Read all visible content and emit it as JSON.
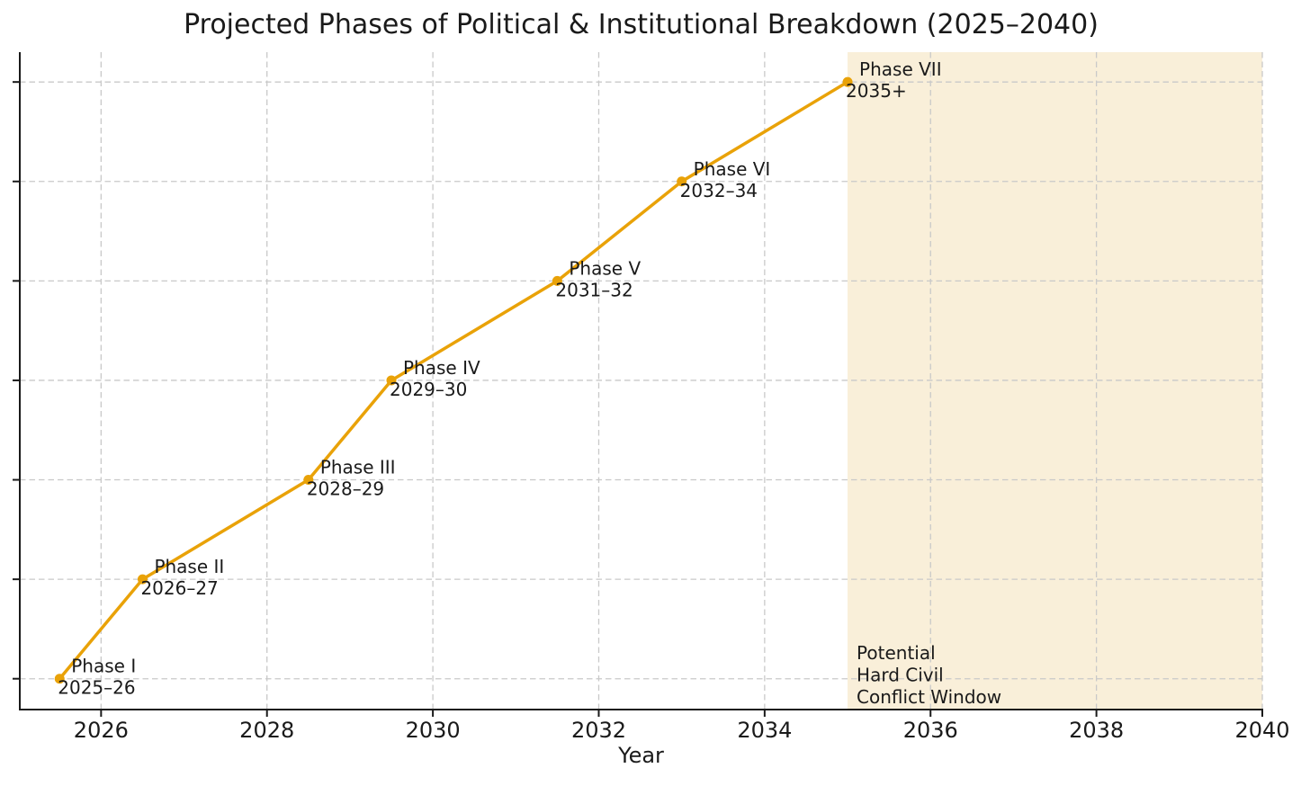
{
  "chart_data": {
    "type": "line",
    "title": "Projected Phases of Political & Institutional Breakdown (2025–2040)",
    "xlabel": "Year",
    "ylabel": "",
    "grid": "dashed",
    "legend": "none",
    "xlim": [
      2025.02,
      2040
    ],
    "ylim": [
      0.69,
      7.3
    ],
    "x_ticks": [
      2026,
      2028,
      2030,
      2032,
      2034,
      2036,
      2038,
      2040
    ],
    "y_gridlines": [
      1,
      2,
      3,
      4,
      5,
      6,
      7
    ],
    "series": [
      {
        "name": "breakdown-phases",
        "points": [
          {
            "x": 2025.5,
            "y": 1,
            "label": "Phase I",
            "sublabel": "2025–26"
          },
          {
            "x": 2026.5,
            "y": 2,
            "label": "Phase II",
            "sublabel": "2026–27"
          },
          {
            "x": 2028.5,
            "y": 3,
            "label": "Phase III",
            "sublabel": "2028–29"
          },
          {
            "x": 2029.5,
            "y": 4,
            "label": "Phase IV",
            "sublabel": "2029–30"
          },
          {
            "x": 2031.5,
            "y": 5,
            "label": "Phase V",
            "sublabel": "2031–32"
          },
          {
            "x": 2033,
            "y": 6,
            "label": "Phase VI",
            "sublabel": "2032–34"
          },
          {
            "x": 2035,
            "y": 7,
            "label": "Phase VII",
            "sublabel": "2035+"
          }
        ]
      }
    ],
    "shaded_region": {
      "x_start": 2035,
      "x_end": 2040,
      "label_lines": [
        "Potential",
        "Hard Civil",
        "Conflict Window"
      ]
    },
    "colors": {
      "line": "#E9A208",
      "marker": "#E9A208",
      "band": "#F9EFD9",
      "grid": "#C9C9C9",
      "axis": "#1a1a1a",
      "text": "#1a1a1a",
      "background": "#ffffff"
    }
  }
}
